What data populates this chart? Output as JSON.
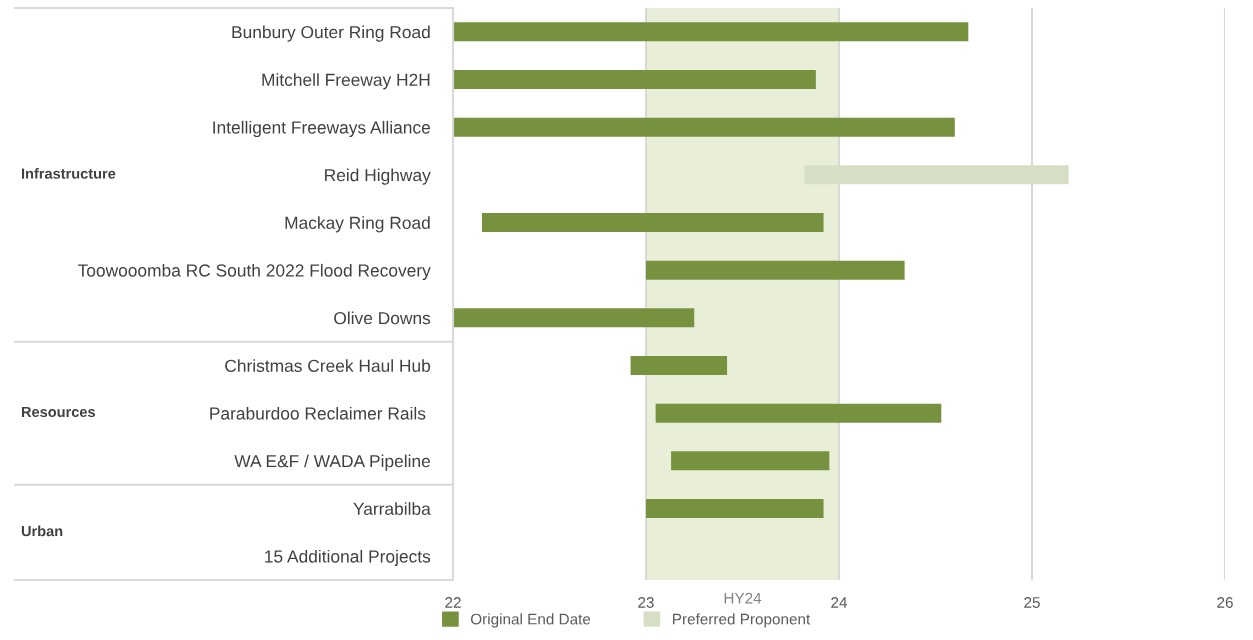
{
  "chart_data": {
    "type": "bar",
    "orientation": "horizontal",
    "categories": [
      "Bunbury Outer Ring Road",
      "Mitchell Freeway H2H",
      "Intelligent Freeways Alliance",
      "Reid Highway",
      "Mackay Ring Road",
      "Toowooomba RC South 2022 Flood Recovery",
      "Olive Downs",
      "Christmas Creek Haul Hub",
      "Paraburdoo Reclaimer Rails ",
      "WA E&F / WADA Pipeline",
      "Yarrabilba",
      "15 Additional Projects"
    ],
    "series": [
      {
        "name": "Original End Date",
        "color": "#77923f",
        "values": [
          2.67,
          1.88,
          2.6,
          null,
          1.77,
          1.34,
          1.25,
          0.5,
          1.48,
          0.82,
          0.92,
          null
        ],
        "base": [
          22,
          22,
          22,
          null,
          22.15,
          23.0,
          22,
          22.92,
          23.05,
          23.13,
          23.0,
          null
        ]
      },
      {
        "name": "Preferred Proponent",
        "color": "#d6dfc5",
        "values": [
          null,
          null,
          null,
          1.37,
          null,
          null,
          null,
          null,
          null,
          null,
          null,
          null
        ],
        "base": [
          null,
          null,
          null,
          23.82,
          null,
          null,
          null,
          null,
          null,
          null,
          null,
          null
        ]
      }
    ],
    "xlim": [
      22,
      26
    ],
    "xticks": [
      22,
      23,
      24,
      25,
      26
    ],
    "bands": [
      {
        "axis": "x",
        "from": 23,
        "to": 24,
        "label": "HY24",
        "color": "#e8eed7"
      }
    ],
    "annotations": [
      "Infrastructure",
      "Resources",
      "Urban"
    ],
    "grid": "x",
    "legend": "bottom"
  }
}
